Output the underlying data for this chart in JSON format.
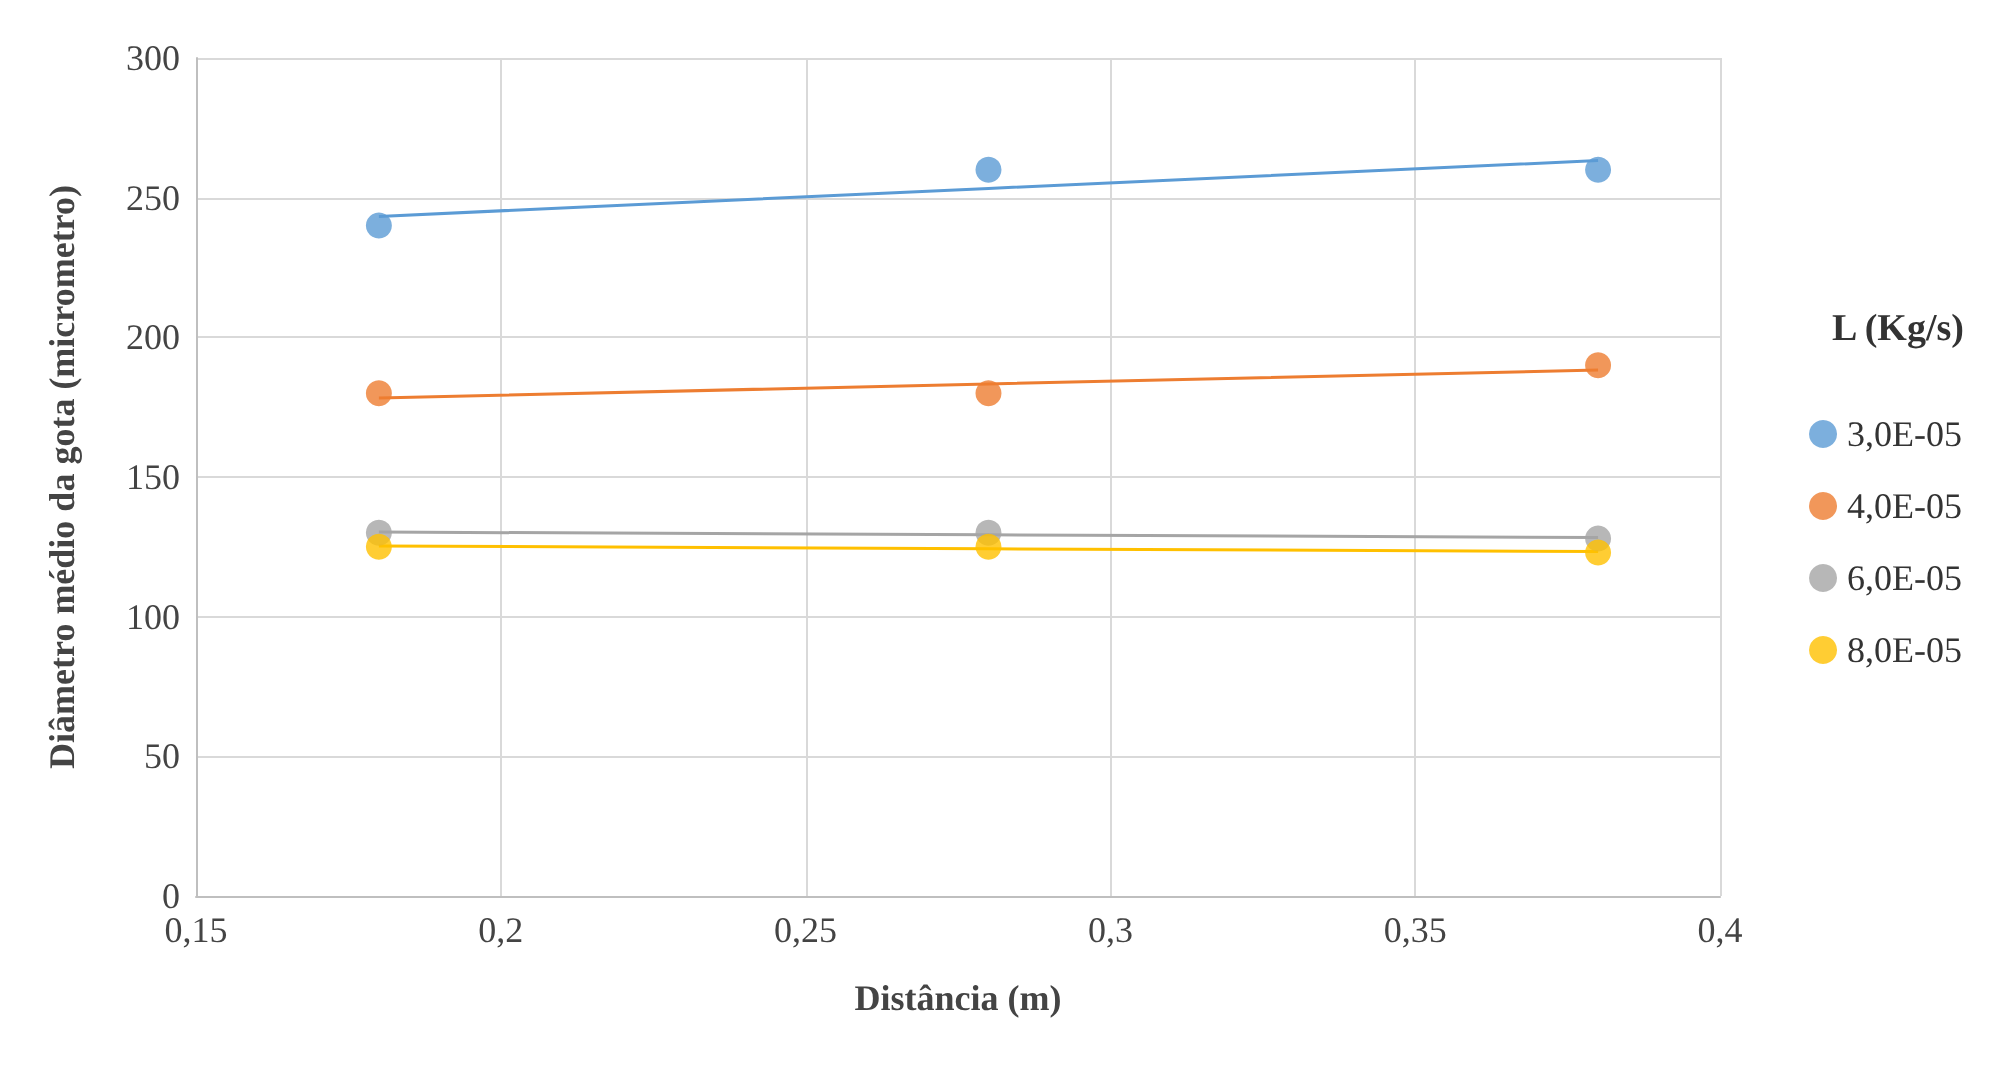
{
  "chart_data": {
    "type": "scatter",
    "xlabel": "Distância (m)",
    "ylabel": "Diâmetro médio da gota (micrometro)",
    "legend_title": "L (Kg/s)",
    "x": [
      0.18,
      0.28,
      0.38
    ],
    "series": [
      {
        "name": "3,0E-05",
        "color": "#5b9bd5",
        "values": [
          240,
          260,
          260
        ],
        "marker": "circle"
      },
      {
        "name": "4,0E-05",
        "color": "#ed7d31",
        "values": [
          180,
          180,
          190
        ],
        "marker": "circle"
      },
      {
        "name": "6,0E-05",
        "color": "#a5a5a5",
        "values": [
          130,
          130,
          128
        ],
        "marker": "circle"
      },
      {
        "name": "8,0E-05",
        "color": "#ffc000",
        "values": [
          125,
          125,
          123
        ],
        "marker": "circle"
      },
      {
        "type": "line",
        "color": "#5b9bd5",
        "values": [
          243.3,
          253.3,
          263.3
        ],
        "marker": "none"
      },
      {
        "type": "line",
        "color": "#ed7d31",
        "values": [
          178.3,
          183.3,
          188.3
        ],
        "marker": "none"
      },
      {
        "type": "line",
        "color": "#a5a5a5",
        "values": [
          130.3,
          129.3,
          128.3
        ],
        "marker": "none"
      },
      {
        "type": "line",
        "color": "#ffc000",
        "values": [
          125.3,
          124.3,
          123.3
        ],
        "marker": "none"
      }
    ],
    "xlim": [
      0.15,
      0.4
    ],
    "xticks": [
      {
        "value": 0.15,
        "label": "0,15"
      },
      {
        "value": 0.2,
        "label": "0,2"
      },
      {
        "value": 0.25,
        "label": "0,25"
      },
      {
        "value": 0.3,
        "label": "0,3"
      },
      {
        "value": 0.35,
        "label": "0,35"
      },
      {
        "value": 0.4,
        "label": "0,4"
      }
    ],
    "ylim": [
      0,
      300
    ],
    "yticks": [
      0,
      50,
      100,
      150,
      200,
      250,
      300
    ],
    "grid": true,
    "legend": "right"
  }
}
